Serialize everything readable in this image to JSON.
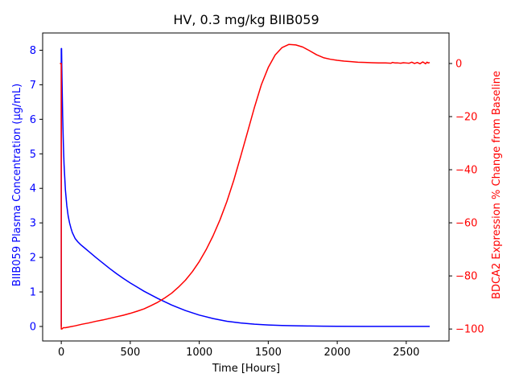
{
  "chart_data": {
    "type": "line",
    "title": "HV, 0.3 mg/kg BIIB059",
    "xlabel": "Time [Hours]",
    "ylabel_left": "BIIB059 Plasma Concentration (µg/mL)",
    "ylabel_right": "BDCA2 Expression % Change from Baseline",
    "xlim": [
      -135,
      2810
    ],
    "ylim_left": [
      -0.42,
      8.5
    ],
    "ylim_right": [
      -104.5,
      11.5
    ],
    "x_ticks": [
      0,
      500,
      1000,
      1500,
      2000,
      2500
    ],
    "y_left_ticks": [
      0,
      1,
      2,
      3,
      4,
      5,
      6,
      7,
      8
    ],
    "y_right_ticks": [
      -100,
      -80,
      -60,
      -40,
      -20,
      0
    ],
    "grid": false,
    "legend": "none",
    "colors": {
      "left_series": "#0000ff",
      "right_series": "#ff0000",
      "axes": "#000000"
    },
    "series": [
      {
        "axis": "left",
        "x": [
          0,
          0,
          2,
          5,
          10,
          15,
          20,
          30,
          40,
          50,
          60,
          70,
          80,
          100,
          120,
          140,
          170,
          200,
          250,
          300,
          350,
          400,
          450,
          500,
          550,
          600,
          700,
          800,
          900,
          1000,
          1100,
          1200,
          1300,
          1400,
          1500,
          1600,
          1700,
          1800,
          1900,
          2000,
          2200,
          2400,
          2670
        ],
        "y": [
          0,
          8.05,
          8.05,
          7.2,
          6.1,
          5.3,
          4.7,
          3.95,
          3.5,
          3.2,
          3.0,
          2.85,
          2.72,
          2.55,
          2.45,
          2.37,
          2.27,
          2.17,
          2.0,
          1.84,
          1.68,
          1.53,
          1.39,
          1.26,
          1.14,
          1.02,
          0.81,
          0.62,
          0.46,
          0.33,
          0.23,
          0.15,
          0.1,
          0.065,
          0.042,
          0.028,
          0.019,
          0.013,
          0.009,
          0.006,
          0.003,
          0.002,
          0.001
        ]
      },
      {
        "axis": "right",
        "x": [
          -10,
          -5,
          0,
          0,
          5,
          15,
          30,
          60,
          100,
          150,
          200,
          250,
          300,
          350,
          400,
          450,
          500,
          550,
          600,
          650,
          700,
          750,
          800,
          850,
          900,
          950,
          1000,
          1050,
          1100,
          1150,
          1200,
          1250,
          1300,
          1350,
          1400,
          1450,
          1500,
          1550,
          1600,
          1650,
          1700,
          1750,
          1800,
          1850,
          1900,
          1950,
          2000,
          2050,
          2100,
          2150,
          2200,
          2250,
          2300,
          2350,
          2390,
          2400,
          2420,
          2440,
          2460,
          2480,
          2500,
          2520,
          2540,
          2560,
          2580,
          2600,
          2620,
          2640,
          2650,
          2660,
          2670
        ],
        "y": [
          0,
          0,
          0,
          -100,
          -100,
          -99.5,
          -99.5,
          -99.2,
          -98.8,
          -98.2,
          -97.7,
          -97.1,
          -96.6,
          -96.0,
          -95.4,
          -94.8,
          -94.1,
          -93.3,
          -92.4,
          -91.2,
          -89.9,
          -88.3,
          -86.5,
          -84.2,
          -81.6,
          -78.4,
          -74.6,
          -70.1,
          -64.9,
          -58.9,
          -52.0,
          -44.0,
          -35.0,
          -25.8,
          -16.5,
          -8.0,
          -1.5,
          3.2,
          6.0,
          7.2,
          7.0,
          6.2,
          4.8,
          3.3,
          2.2,
          1.6,
          1.2,
          0.9,
          0.7,
          0.5,
          0.4,
          0.3,
          0.2,
          0.2,
          0.1,
          0.4,
          0.2,
          0.2,
          0.1,
          0.3,
          0.2,
          0.1,
          0.5,
          0.0,
          0.4,
          -0.1,
          0.6,
          -0.1,
          0.5,
          0.2,
          0.4
        ]
      }
    ]
  }
}
